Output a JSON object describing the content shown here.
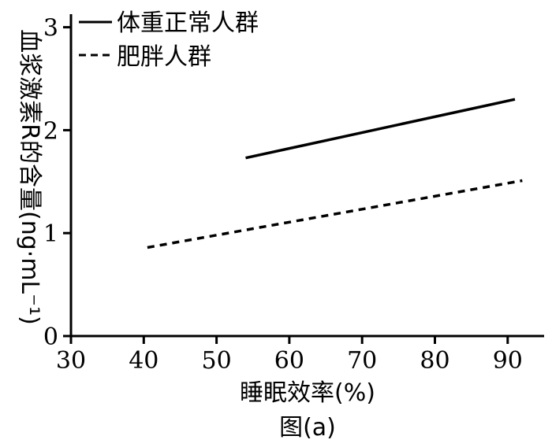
{
  "chart_data": {
    "type": "line",
    "xlabel": "睡眠效率(%)",
    "ylabel": "血浆激素R的含量(ng·mL⁻¹)",
    "caption": "图(a)",
    "xlim": [
      30,
      92
    ],
    "ylim": [
      0,
      3
    ],
    "xticks": [
      30,
      40,
      50,
      60,
      70,
      80,
      90
    ],
    "yticks": [
      0,
      1,
      2,
      3
    ],
    "grid": false,
    "legend_position": "top-left",
    "series": [
      {
        "name": "体重正常人群",
        "style": "solid",
        "color": "#000000",
        "x": [
          54,
          91
        ],
        "y": [
          1.73,
          2.3
        ]
      },
      {
        "name": "肥胖人群",
        "style": "dashed",
        "color": "#000000",
        "x": [
          40.5,
          92
        ],
        "y": [
          0.86,
          1.51
        ]
      }
    ]
  }
}
